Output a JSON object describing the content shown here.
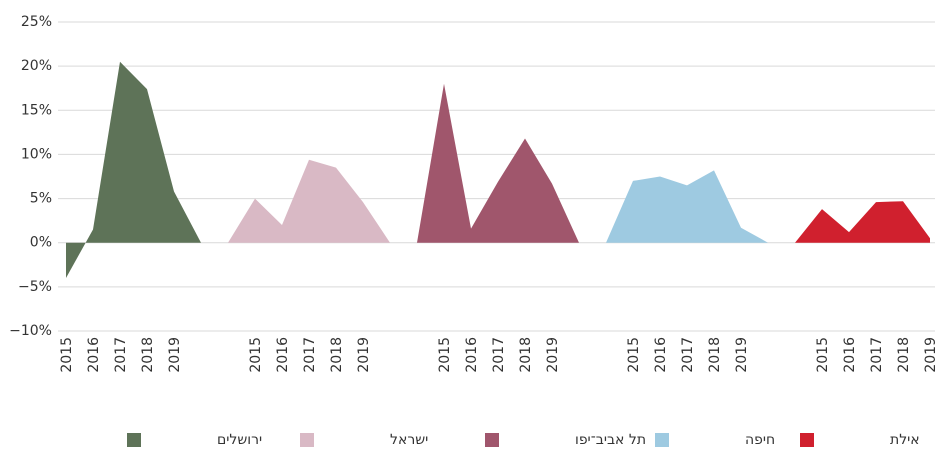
{
  "chart_data": {
    "type": "area",
    "categories": [
      "2015",
      "2016",
      "2017",
      "2018",
      "2019",
      null,
      null,
      "2015",
      "2016",
      "2017",
      "2018",
      "2019",
      null,
      null,
      "2015",
      "2016",
      "2017",
      "2018",
      "2019",
      null,
      null,
      "2015",
      "2016",
      "2017",
      "2018",
      "2019",
      null,
      null,
      "2015",
      "2016",
      "2017",
      "2018",
      "2019"
    ],
    "series": [
      {
        "name": "ירושלים",
        "color": "#5e7358",
        "values": [
          -4,
          1.5,
          20.5,
          17.4,
          5.8,
          0,
          null,
          null,
          null,
          null,
          null,
          null,
          null,
          null,
          null,
          null,
          null,
          null,
          null,
          null,
          null,
          null,
          null,
          null,
          null,
          null,
          null,
          null,
          null,
          null,
          null,
          null,
          null
        ]
      },
      {
        "name": "ישראל",
        "color": "#d9b9c5",
        "values": [
          null,
          null,
          null,
          null,
          null,
          null,
          0,
          5,
          2,
          9.4,
          8.5,
          4.6,
          0,
          null,
          null,
          null,
          null,
          null,
          null,
          null,
          null,
          null,
          null,
          null,
          null,
          null,
          null,
          null,
          null,
          null,
          null,
          null,
          null
        ]
      },
      {
        "name": "תל אביב־יפו",
        "color": "#a0566c",
        "values": [
          null,
          null,
          null,
          null,
          null,
          null,
          null,
          null,
          null,
          null,
          null,
          null,
          null,
          0,
          18,
          1.6,
          6.9,
          11.8,
          6.7,
          0,
          null,
          null,
          null,
          null,
          null,
          null,
          null,
          null,
          null,
          null,
          null,
          null,
          null
        ]
      },
      {
        "name": "חיפה",
        "color": "#9ecae1",
        "values": [
          null,
          null,
          null,
          null,
          null,
          null,
          null,
          null,
          null,
          null,
          null,
          null,
          null,
          null,
          null,
          null,
          null,
          null,
          null,
          null,
          0,
          7,
          7.5,
          6.5,
          8.2,
          1.7,
          0,
          null,
          null,
          null,
          null,
          null,
          null
        ]
      },
      {
        "name": "אילת",
        "color": "#d0202e",
        "values": [
          null,
          null,
          null,
          null,
          null,
          null,
          null,
          null,
          null,
          null,
          null,
          null,
          null,
          null,
          null,
          null,
          null,
          null,
          null,
          null,
          null,
          null,
          null,
          null,
          null,
          null,
          null,
          0,
          3.8,
          1.2,
          4.6,
          4.7,
          0.5
        ]
      }
    ],
    "ylim": [
      -10,
      25
    ],
    "yticks": [
      {
        "value": -10,
        "label": "−10%"
      },
      {
        "value": -5,
        "label": "−5%"
      },
      {
        "value": 0,
        "label": "0%"
      },
      {
        "value": 5,
        "label": "5%"
      },
      {
        "value": 10,
        "label": "10%"
      },
      {
        "value": 15,
        "label": "15%"
      },
      {
        "value": 20,
        "label": "20%"
      },
      {
        "value": 25,
        "label": "25%"
      }
    ],
    "grid": true
  }
}
